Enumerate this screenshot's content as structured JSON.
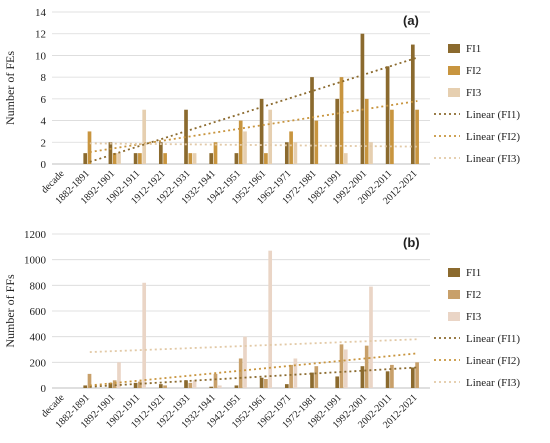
{
  "chart_data": [
    {
      "type": "bar",
      "panel_label": "(a)",
      "ylabel": "Number of FEs",
      "ylim": [
        0,
        14
      ],
      "yticks": [
        0,
        2,
        4,
        6,
        8,
        10,
        12,
        14
      ],
      "grid": true,
      "legend_position": "right",
      "first_category": "decade",
      "categories": [
        "1882-1891",
        "1892-1901",
        "1902-1911",
        "1912-1921",
        "1922-1931",
        "1932-1941",
        "1942-1951",
        "1952-1961",
        "1962-1971",
        "1972-1981",
        "1982-1991",
        "1992-2001",
        "2002-2011",
        "2012-2021"
      ],
      "series": [
        {
          "name": "FI1",
          "color": "#8b6a2e",
          "values": [
            1,
            2,
            1,
            2,
            5,
            1,
            1,
            6,
            2,
            8,
            6,
            12,
            9,
            11
          ]
        },
        {
          "name": "FI2",
          "color": "#c8953f",
          "values": [
            3,
            1,
            1,
            1,
            1,
            2,
            4,
            1,
            3,
            4,
            8,
            6,
            5,
            5
          ]
        },
        {
          "name": "FI3",
          "color": "#e6cfb0",
          "values": [
            0,
            1,
            5,
            0,
            1,
            0,
            3,
            5,
            2,
            0,
            1,
            2,
            0,
            0
          ]
        }
      ],
      "trendlines": [
        {
          "name": "Linear (FI1)",
          "color": "#8b6a2e",
          "start": 0.2,
          "end": 9.8
        },
        {
          "name": "Linear (FI2)",
          "color": "#c8953f",
          "start": 1.1,
          "end": 5.8
        },
        {
          "name": "Linear (FI3)",
          "color": "#e2c9a6",
          "start": 1.9,
          "end": 1.6
        }
      ]
    },
    {
      "type": "bar",
      "panel_label": "(b)",
      "ylabel": "Number of FFs",
      "ylim": [
        0,
        1200
      ],
      "yticks": [
        0,
        200,
        400,
        600,
        800,
        1000,
        1200
      ],
      "grid": true,
      "legend_position": "right",
      "first_category": "decade",
      "categories": [
        "1882-1891",
        "1892-1901",
        "1902-1911",
        "1912-1921",
        "1922-1931",
        "1932-1941",
        "1942-1951",
        "1952-1961",
        "1962-1971",
        "1972-1981",
        "1982-1991",
        "1992-2001",
        "2002-2011",
        "2012-2021"
      ],
      "series": [
        {
          "name": "FI1",
          "color": "#8b6a2e",
          "values": [
            20,
            40,
            40,
            30,
            60,
            10,
            20,
            80,
            30,
            120,
            90,
            170,
            130,
            160
          ]
        },
        {
          "name": "FI2",
          "color": "#c8a06a",
          "values": [
            110,
            60,
            50,
            20,
            40,
            110,
            230,
            70,
            180,
            170,
            340,
            330,
            180,
            200
          ]
        },
        {
          "name": "FI3",
          "color": "#ead5c6",
          "values": [
            0,
            200,
            820,
            0,
            60,
            20,
            400,
            1070,
            230,
            0,
            300,
            790,
            0,
            0
          ]
        }
      ],
      "trendlines": [
        {
          "name": "Linear (FI1)",
          "color": "#8b6a2e",
          "start": 10,
          "end": 160
        },
        {
          "name": "Linear (FI2)",
          "color": "#c8953f",
          "start": 20,
          "end": 270
        },
        {
          "name": "Linear (FI3)",
          "color": "#e2c9a6",
          "start": 280,
          "end": 380
        }
      ]
    }
  ]
}
